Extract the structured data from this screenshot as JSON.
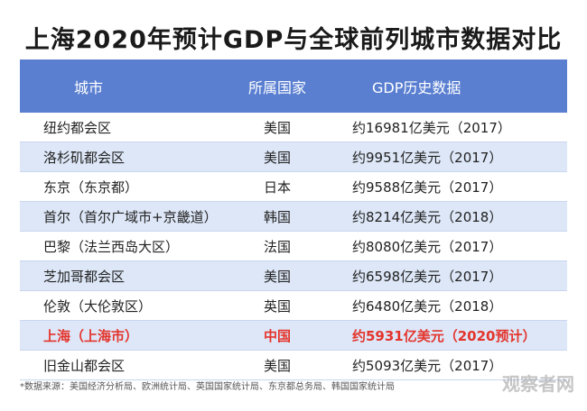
{
  "header": {
    "title": "上海2020年预计GDP与全球前列城市数据对比"
  },
  "table": {
    "columns": [
      "城市",
      "所属国家",
      "GDP历史数据"
    ],
    "rows": [
      [
        "纽约都会区",
        "美国",
        "约16981亿美元（2017）"
      ],
      [
        "洛杉矶都会区",
        "美国",
        "约9951亿美元（2017）"
      ],
      [
        "东京（东京都）",
        "日本",
        "约9588亿美元（2017）"
      ],
      [
        "首尔（首尔广域市+京畿道）",
        "韩国",
        "约8214亿美元（2018）"
      ],
      [
        "巴黎（法兰西岛大区）",
        "法国",
        "约8080亿美元（2017）"
      ],
      [
        "芝加哥都会区",
        "美国",
        "约6598亿美元（2017）"
      ],
      [
        "伦敦（大伦敦区）",
        "英国",
        "约6480亿美元（2018）"
      ],
      [
        "上海（上海市）",
        "中国",
        "约5931亿美元（2020预计）"
      ],
      [
        "旧金山都会区",
        "美国",
        "约5093亿美元（2017）"
      ]
    ],
    "highlight": {
      "row": 7,
      "color": "#e4342c"
    }
  },
  "footer": {
    "note": "*数据来源：美国经济分析局、欧洲统计局、英国国家统计局、东京都总务局、韩国国家统计局",
    "watermark": "观察者网"
  }
}
